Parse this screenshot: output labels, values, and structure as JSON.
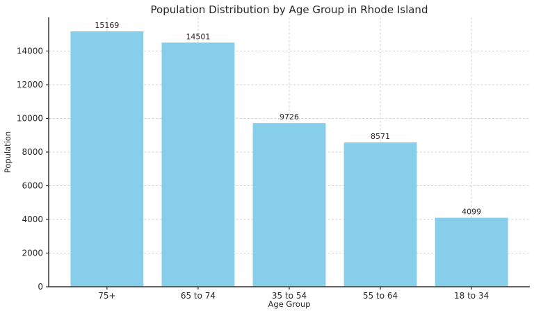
{
  "chart_data": {
    "type": "bar",
    "title": "Population Distribution by Age Group in Rhode Island",
    "xlabel": "Age Group",
    "ylabel": "Population",
    "categories": [
      "75+",
      "65 to 74",
      "35 to 54",
      "55 to 64",
      "18 to 34"
    ],
    "values": [
      15169,
      14501,
      9726,
      8571,
      4099
    ],
    "y_ticks": [
      0,
      2000,
      4000,
      6000,
      8000,
      10000,
      12000,
      14000
    ],
    "ylim": [
      0,
      16000
    ],
    "grid": true,
    "legend": "none",
    "bar_color": "#87CEEB",
    "text_color": "#262626",
    "spine_color": "#333333",
    "grid_color": "#cccccc",
    "background_color": "#ffffff"
  }
}
